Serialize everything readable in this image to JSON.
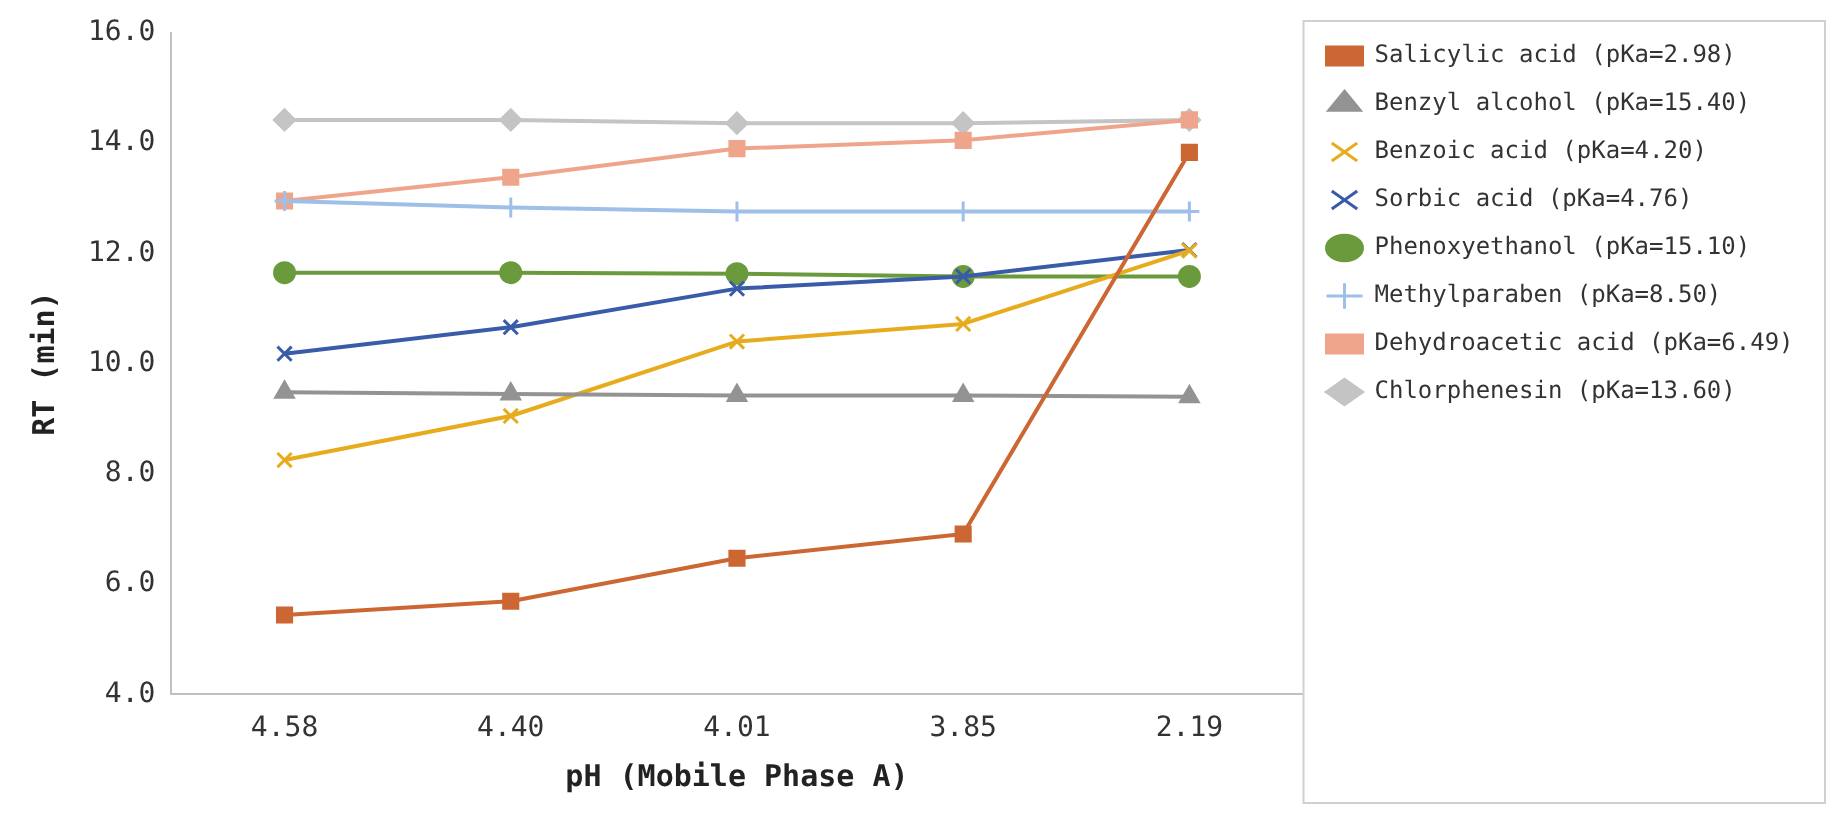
{
  "chart_data": {
    "type": "line",
    "xlabel": "pH (Mobile Phase A)",
    "ylabel": "RT (min)",
    "categories": [
      "4.58",
      "4.40",
      "4.01",
      "3.85",
      "2.19"
    ],
    "ylim": [
      4,
      16
    ],
    "yticks": [
      {
        "value": 4,
        "label": "4.0"
      },
      {
        "value": 6,
        "label": "6.0"
      },
      {
        "value": 8,
        "label": "8.0"
      },
      {
        "value": 10,
        "label": "10.0"
      },
      {
        "value": 12,
        "label": "12.0"
      },
      {
        "value": 14,
        "label": "14.0"
      },
      {
        "value": 16,
        "label": "16.0"
      }
    ],
    "grid": false,
    "legend": "right",
    "line_style": "solid",
    "series": [
      {
        "name": "Salicylic acid (pKa=2.98)",
        "color": "#cc6633",
        "marker": "square",
        "values": [
          5.44,
          5.69,
          6.47,
          6.91,
          13.83
        ]
      },
      {
        "name": "Benzyl alcohol (pKa=15.40)",
        "color": "#939393",
        "marker": "triangle",
        "values": [
          9.48,
          9.45,
          9.42,
          9.42,
          9.4
        ]
      },
      {
        "name": "Benzoic acid (pKa=4.20)",
        "color": "#e6ac1e",
        "marker": "cross",
        "values": [
          8.25,
          9.05,
          10.4,
          10.72,
          12.05
        ]
      },
      {
        "name": "Sorbic acid (pKa=4.76)",
        "color": "#3a5ba8",
        "marker": "cross",
        "values": [
          10.18,
          10.66,
          11.36,
          11.58,
          12.06
        ]
      },
      {
        "name": "Phenoxyethanol (pKa=15.10)",
        "color": "#6a9a3c",
        "marker": "circle",
        "values": [
          11.65,
          11.65,
          11.63,
          11.58,
          11.58
        ]
      },
      {
        "name": "Methylparaben (pKa=8.50)",
        "color": "#9ec0e8",
        "marker": "plus",
        "values": [
          12.95,
          12.83,
          12.76,
          12.76,
          12.76
        ]
      },
      {
        "name": "Dehydroacetic acid (pKa=6.49)",
        "color": "#eea58c",
        "marker": "square",
        "values": [
          12.95,
          13.38,
          13.9,
          14.05,
          14.42
        ]
      },
      {
        "name": "Chlorphenesin (pKa=13.60)",
        "color": "#c4c4c4",
        "marker": "diamond",
        "values": [
          14.42,
          14.42,
          14.36,
          14.36,
          14.42
        ]
      }
    ]
  }
}
